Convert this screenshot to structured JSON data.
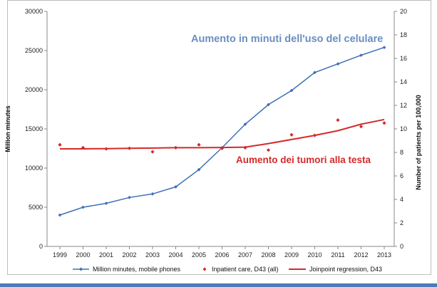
{
  "chart_data": {
    "type": "line",
    "x": [
      1999,
      2000,
      2001,
      2002,
      2003,
      2004,
      2005,
      2006,
      2007,
      2008,
      2009,
      2010,
      2011,
      2012,
      2013
    ],
    "ylabel_left": "Million minutes",
    "ylabel_right": "Number of patients per 100,000",
    "ylim_left": [
      0,
      30000
    ],
    "yticks_left": [
      0,
      5000,
      10000,
      15000,
      20000,
      25000,
      30000
    ],
    "ylim_right": [
      0,
      20
    ],
    "yticks_right": [
      0,
      2,
      4,
      6,
      8,
      10,
      12,
      14,
      16,
      18,
      20
    ],
    "grid": false,
    "legend_position": "bottom",
    "series": [
      {
        "name": "Million minutes, mobile phones",
        "axis": "left",
        "style": "line-diamond",
        "color": "#3f6fb5",
        "values": [
          4000,
          5000,
          5500,
          6250,
          6700,
          7600,
          9800,
          12600,
          15600,
          18100,
          19900,
          22200,
          23300,
          24400,
          25400
        ]
      },
      {
        "name": "Inpatient care, D43 (all)",
        "axis": "right",
        "style": "markers",
        "color": "#d42a2a",
        "values": [
          8.65,
          8.4,
          8.3,
          8.35,
          8.05,
          8.4,
          8.65,
          8.35,
          8.4,
          8.2,
          9.5,
          9.45,
          10.75,
          10.2,
          10.5
        ]
      },
      {
        "name": "Joinpoint regression, D43",
        "axis": "right",
        "style": "line",
        "color": "#d42a2a",
        "values": [
          8.3,
          8.3,
          8.32,
          8.35,
          8.37,
          8.4,
          8.4,
          8.42,
          8.45,
          8.75,
          9.1,
          9.45,
          9.85,
          10.4,
          10.8
        ]
      }
    ],
    "annotations": [
      {
        "text": "Aumento in minuti dell'uso del celulare",
        "color": "#6a8fc0"
      },
      {
        "text": "Aumento dei tumori alla testa",
        "color": "#d42a2a"
      }
    ]
  }
}
